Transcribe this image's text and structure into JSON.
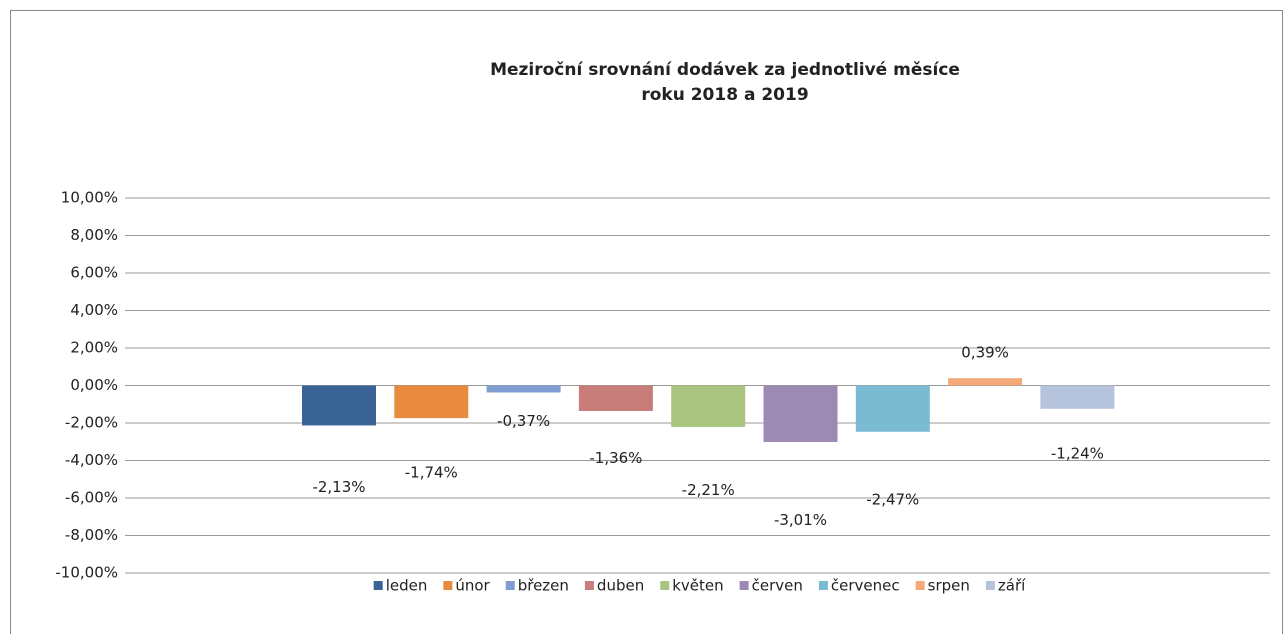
{
  "chart_data": {
    "type": "bar",
    "title": [
      "Meziroční srovnání dodávek za jednotlivé měsíce",
      "roku 2018 a 2019"
    ],
    "categories": [
      null
    ],
    "series": [
      {
        "name": "leden",
        "color": "#3b6496",
        "values": [
          -2.13
        ],
        "value_labels": [
          "-2,13%"
        ]
      },
      {
        "name": "únor",
        "color": "#e88b3e",
        "values": [
          -1.74
        ],
        "value_labels": [
          "-1,74%"
        ]
      },
      {
        "name": "březen",
        "color": "#7f9dd0",
        "values": [
          -0.37
        ],
        "value_labels": [
          "-0,37%"
        ]
      },
      {
        "name": "duben",
        "color": "#c97d7a",
        "values": [
          -1.36
        ],
        "value_labels": [
          "-1,36%"
        ]
      },
      {
        "name": "květen",
        "color": "#a9c47f",
        "values": [
          -2.21
        ],
        "value_labels": [
          "-2,21%"
        ]
      },
      {
        "name": "červen",
        "color": "#9c89b4",
        "values": [
          -3.01
        ],
        "value_labels": [
          "-3,01%"
        ]
      },
      {
        "name": "červenec",
        "color": "#7bbbd1",
        "values": [
          -2.47
        ],
        "value_labels": [
          "-2,47%"
        ]
      },
      {
        "name": "srpen",
        "color": "#f5a878",
        "values": [
          0.39
        ],
        "value_labels": [
          "0,39%"
        ]
      },
      {
        "name": "září",
        "color": "#b5c3dd",
        "values": [
          -1.24
        ],
        "value_labels": [
          "-1,24%"
        ]
      }
    ],
    "ylim": [
      -10,
      10
    ],
    "yticks": [
      {
        "value": -10,
        "label": "-10,00%"
      },
      {
        "value": -8,
        "label": "-8,00%"
      },
      {
        "value": -6,
        "label": "-6,00%"
      },
      {
        "value": -4,
        "label": "-4,00%"
      },
      {
        "value": -2,
        "label": "-2,00%"
      },
      {
        "value": 0,
        "label": "0,00%"
      },
      {
        "value": 2,
        "label": "2,00%"
      },
      {
        "value": 4,
        "label": "4,00%"
      },
      {
        "value": 6,
        "label": "6,00%"
      },
      {
        "value": 8,
        "label": "8,00%"
      },
      {
        "value": 10,
        "label": "10,00%"
      }
    ],
    "grid": true,
    "legend": "bottom"
  }
}
